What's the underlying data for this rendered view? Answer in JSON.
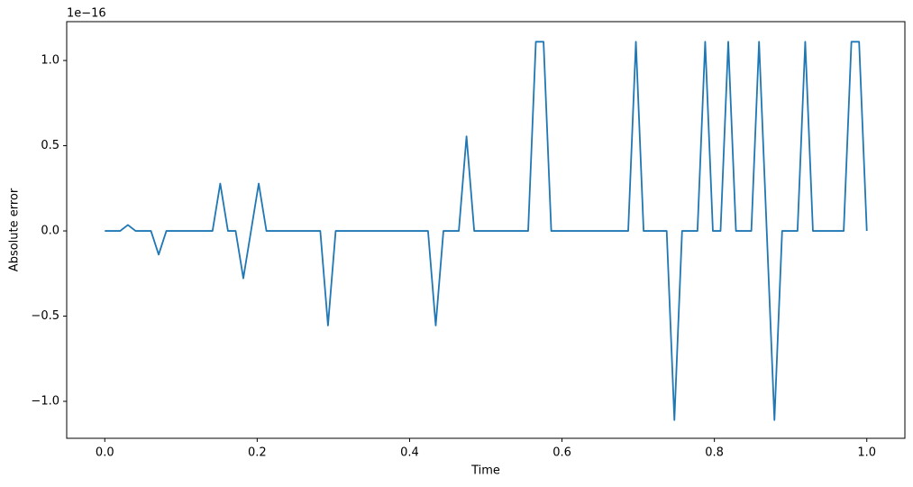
{
  "chart_data": {
    "type": "line",
    "xlabel": "Time",
    "ylabel": "Absolute error",
    "y_offset_text": "1e−16",
    "x": [
      0,
      0.0101,
      0.0202,
      0.0303,
      0.0404,
      0.0505,
      0.0606,
      0.0707,
      0.0808,
      0.0909,
      0.101,
      0.1111,
      0.1212,
      0.1313,
      0.1414,
      0.1515,
      0.1616,
      0.1717,
      0.1818,
      0.1919,
      0.202,
      0.2121,
      0.2222,
      0.2323,
      0.2424,
      0.2525,
      0.2626,
      0.2727,
      0.2828,
      0.2929,
      0.303,
      0.3131,
      0.3232,
      0.3333,
      0.3434,
      0.3535,
      0.3636,
      0.3737,
      0.3838,
      0.3939,
      0.404,
      0.4141,
      0.4242,
      0.4343,
      0.4444,
      0.4545,
      0.4646,
      0.4747,
      0.4848,
      0.4949,
      0.5051,
      0.5152,
      0.5253,
      0.5354,
      0.5455,
      0.5556,
      0.5657,
      0.5758,
      0.5859,
      0.596,
      0.6061,
      0.6162,
      0.6263,
      0.6364,
      0.6465,
      0.6566,
      0.6667,
      0.6768,
      0.6869,
      0.697,
      0.7071,
      0.7172,
      0.7273,
      0.7374,
      0.7475,
      0.7576,
      0.7677,
      0.7778,
      0.7879,
      0.798,
      0.8081,
      0.8182,
      0.8283,
      0.8384,
      0.8485,
      0.8586,
      0.8687,
      0.8788,
      0.8889,
      0.899,
      0.9091,
      0.9192,
      0.9293,
      0.9394,
      0.9495,
      0.9596,
      0.9697,
      0.9798,
      0.9899,
      1
    ],
    "series": [
      {
        "color": "#1f77b4",
        "values": [
          0,
          0,
          0,
          0.035,
          0,
          0,
          0,
          -0.139,
          0,
          0,
          0,
          0,
          0,
          0,
          0,
          0.278,
          0,
          0,
          -0.278,
          0,
          0.278,
          0,
          0,
          0,
          0,
          0,
          0,
          0,
          0,
          -0.555,
          0,
          0,
          0,
          0,
          0,
          0,
          0,
          0,
          0,
          0,
          0,
          0,
          0,
          -0.555,
          0,
          0,
          0,
          0.555,
          0,
          0,
          0,
          0,
          0,
          0,
          0,
          0,
          1.11,
          1.11,
          0,
          0,
          0,
          0,
          0,
          0,
          0,
          0,
          0,
          0,
          0,
          1.11,
          0,
          0,
          0,
          0,
          -1.11,
          0,
          0,
          0,
          1.11,
          0,
          0,
          1.11,
          0,
          0,
          0,
          1.11,
          0,
          -1.11,
          0,
          0,
          0,
          1.11,
          0,
          0,
          0,
          0,
          0,
          1.11,
          1.11,
          0
        ]
      }
    ],
    "xlim": [
      -0.05,
      1.05
    ],
    "ylim": [
      -1.217,
      1.228
    ],
    "xticks": [
      {
        "value": 0,
        "label": "0.0"
      },
      {
        "value": 0.2,
        "label": "0.2"
      },
      {
        "value": 0.4,
        "label": "0.4"
      },
      {
        "value": 0.6,
        "label": "0.6"
      },
      {
        "value": 0.8,
        "label": "0.8"
      },
      {
        "value": 1,
        "label": "1.0"
      }
    ],
    "yticks": [
      {
        "value": -1,
        "label": "−1.0"
      },
      {
        "value": -0.5,
        "label": "−0.5"
      },
      {
        "value": 0,
        "label": "0.0"
      },
      {
        "value": 0.5,
        "label": "0.5"
      },
      {
        "value": 1,
        "label": "1.0"
      }
    ],
    "grid": false
  }
}
